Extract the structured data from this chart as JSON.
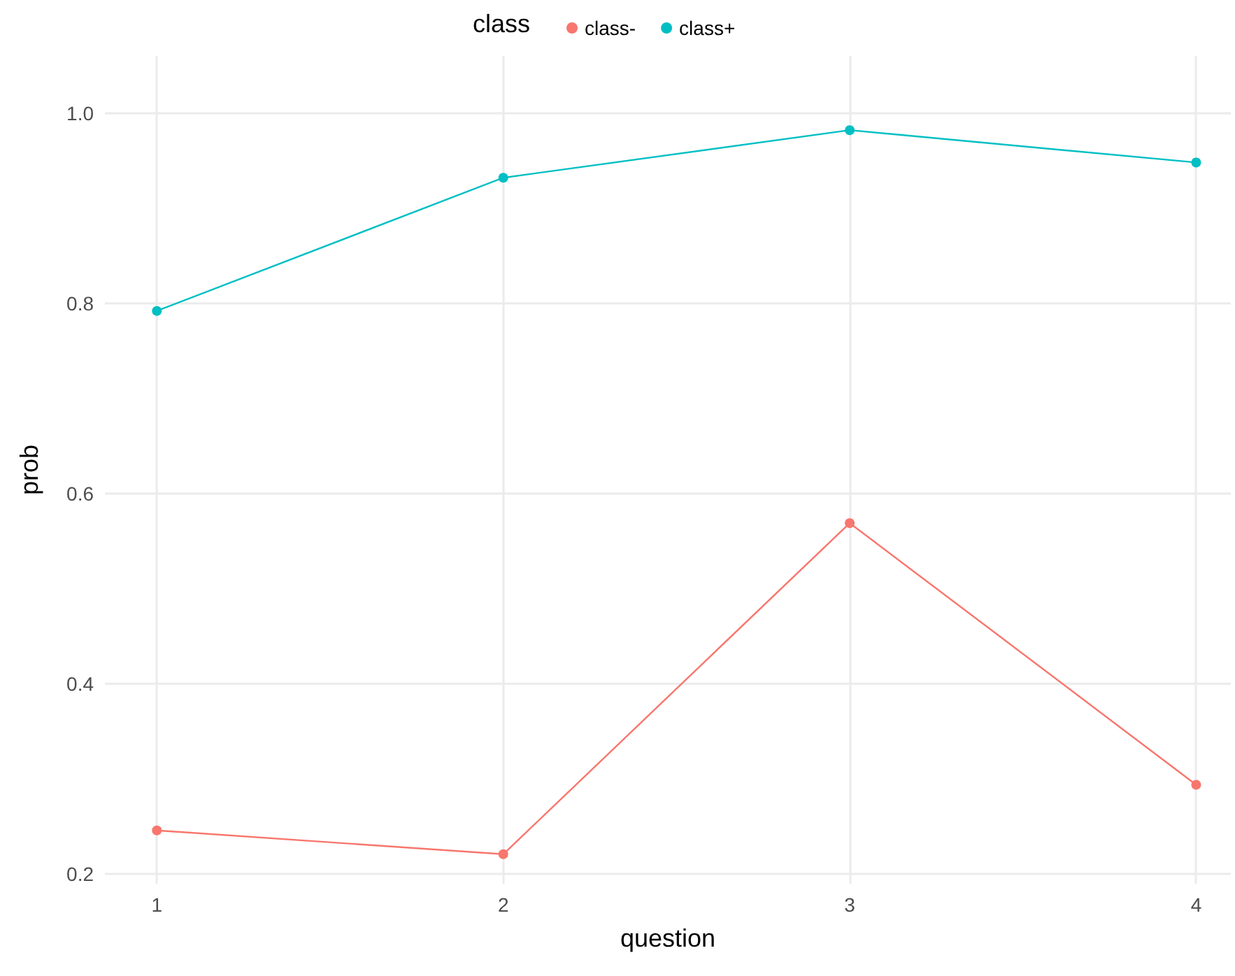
{
  "chart_data": {
    "type": "line",
    "xlabel": "question",
    "ylabel": "prob",
    "legend_title": "class",
    "x": [
      1,
      2,
      3,
      4
    ],
    "series": [
      {
        "name": "class-",
        "color": "#f8766d",
        "values": [
          0.246,
          0.221,
          0.569,
          0.294
        ]
      },
      {
        "name": "class+",
        "color": "#00bfc4",
        "values": [
          0.792,
          0.932,
          0.982,
          0.948
        ]
      }
    ],
    "xlim": [
      0.85,
      4.1
    ],
    "xticks": [
      1,
      2,
      3,
      4
    ],
    "ylim": [
      0.19,
      1.06
    ],
    "yticks": [
      0.2,
      0.4,
      0.6,
      0.8,
      {
        "value": 1,
        "label": "1.0"
      }
    ],
    "grid": true,
    "legend": "top",
    "marker": "circle",
    "line_style": "solid"
  }
}
